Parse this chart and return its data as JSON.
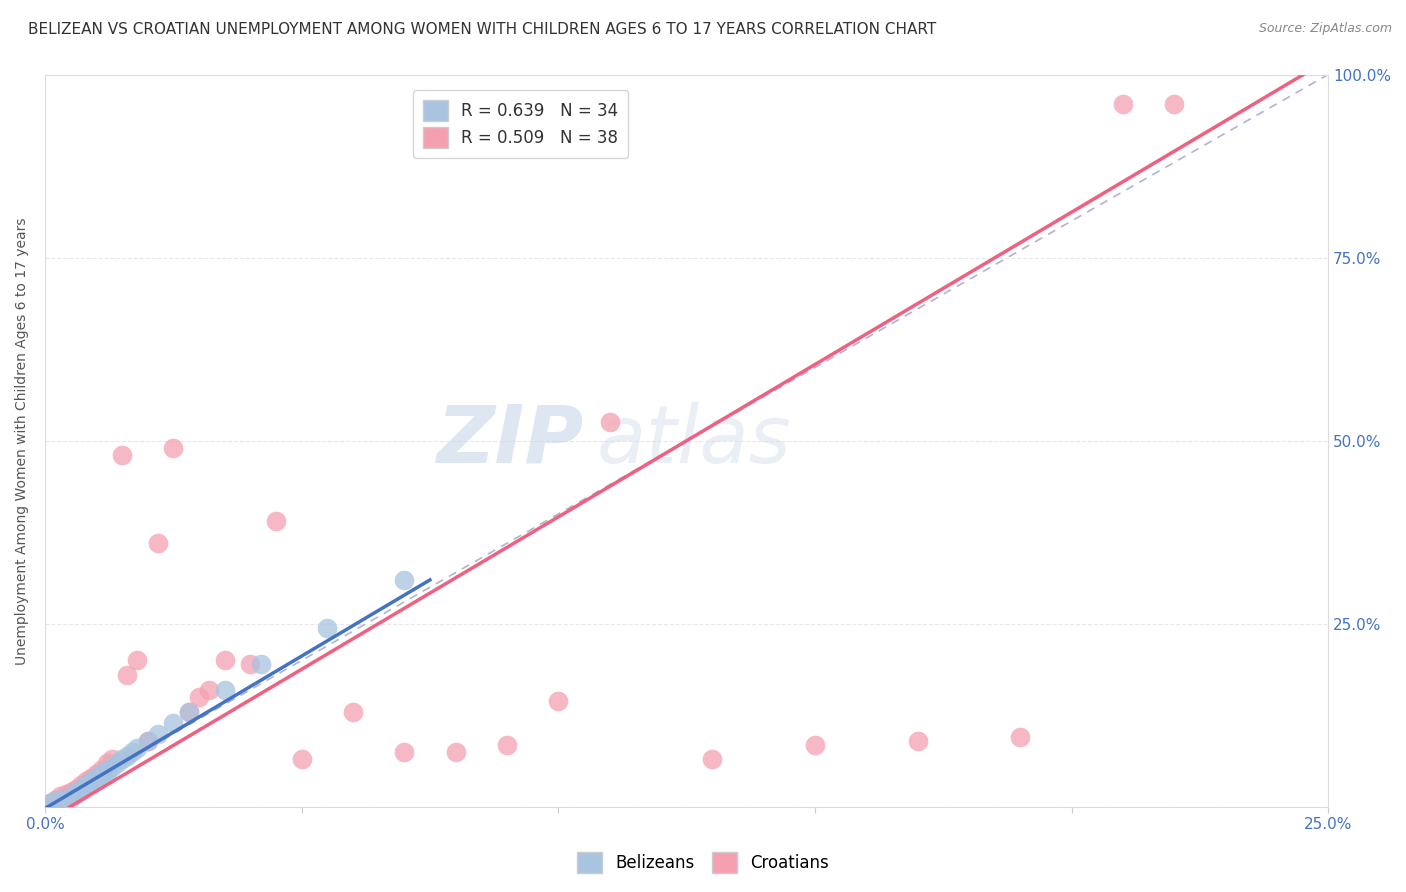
{
  "title": "BELIZEAN VS CROATIAN UNEMPLOYMENT AMONG WOMEN WITH CHILDREN AGES 6 TO 17 YEARS CORRELATION CHART",
  "source": "Source: ZipAtlas.com",
  "ylabel": "Unemployment Among Women with Children Ages 6 to 17 years",
  "xlim": [
    0.0,
    0.25
  ],
  "ylim": [
    0.0,
    1.0
  ],
  "xticks": [
    0.0,
    0.05,
    0.1,
    0.15,
    0.2,
    0.25
  ],
  "yticks": [
    0.0,
    0.25,
    0.5,
    0.75,
    1.0
  ],
  "xticklabels": [
    "0.0%",
    "",
    "",
    "",
    "",
    "25.0%"
  ],
  "yticklabels_right": [
    "",
    "25.0%",
    "50.0%",
    "75.0%",
    "100.0%"
  ],
  "belizean_R": 0.639,
  "belizean_N": 34,
  "croatian_R": 0.509,
  "croatian_N": 38,
  "belizean_color": "#a8c4e0",
  "croatian_color": "#f4a0b0",
  "belizean_line_color": "#4472c4",
  "croatian_line_color": "#f06080",
  "ref_line_color": "#aaaacc",
  "legend_label_1": "Belizeans",
  "legend_label_2": "Croatians",
  "background_color": "#ffffff",
  "grid_color": "#e8e8e8",
  "watermark_zip": "ZIP",
  "watermark_atlas": "atlas",
  "belizean_x": [
    0.001,
    0.002,
    0.003,
    0.004,
    0.005,
    0.005,
    0.006,
    0.006,
    0.007,
    0.007,
    0.008,
    0.008,
    0.009,
    0.009,
    0.01,
    0.01,
    0.011,
    0.011,
    0.012,
    0.012,
    0.013,
    0.014,
    0.015,
    0.016,
    0.017,
    0.018,
    0.02,
    0.022,
    0.025,
    0.028,
    0.035,
    0.042,
    0.055,
    0.07
  ],
  "belizean_y": [
    0.005,
    0.008,
    0.01,
    0.012,
    0.012,
    0.015,
    0.018,
    0.02,
    0.022,
    0.025,
    0.028,
    0.03,
    0.032,
    0.035,
    0.038,
    0.04,
    0.042,
    0.045,
    0.048,
    0.05,
    0.055,
    0.06,
    0.065,
    0.07,
    0.075,
    0.08,
    0.09,
    0.1,
    0.115,
    0.13,
    0.16,
    0.195,
    0.245,
    0.31
  ],
  "croatian_x": [
    0.001,
    0.002,
    0.003,
    0.004,
    0.005,
    0.006,
    0.007,
    0.008,
    0.009,
    0.01,
    0.011,
    0.012,
    0.013,
    0.015,
    0.016,
    0.018,
    0.02,
    0.022,
    0.025,
    0.028,
    0.03,
    0.032,
    0.035,
    0.04,
    0.045,
    0.05,
    0.06,
    0.07,
    0.08,
    0.09,
    0.1,
    0.11,
    0.13,
    0.15,
    0.17,
    0.19,
    0.21,
    0.22
  ],
  "croatian_y": [
    0.005,
    0.01,
    0.015,
    0.018,
    0.02,
    0.025,
    0.03,
    0.035,
    0.04,
    0.045,
    0.05,
    0.06,
    0.065,
    0.48,
    0.18,
    0.2,
    0.09,
    0.36,
    0.49,
    0.13,
    0.15,
    0.16,
    0.2,
    0.195,
    0.39,
    0.065,
    0.13,
    0.075,
    0.075,
    0.085,
    0.145,
    0.525,
    0.065,
    0.085,
    0.09,
    0.095,
    0.96,
    0.96
  ],
  "title_fontsize": 11,
  "axis_label_fontsize": 10,
  "tick_fontsize": 11,
  "legend_fontsize": 12,
  "belizean_line_x0": 0.0,
  "belizean_line_x1": 0.075,
  "belizean_line_y0": -0.002,
  "belizean_line_y1": 0.31,
  "croatian_line_x0": 0.0,
  "croatian_line_x1": 0.25,
  "croatian_line_y0": -0.02,
  "croatian_line_y1": 1.02
}
